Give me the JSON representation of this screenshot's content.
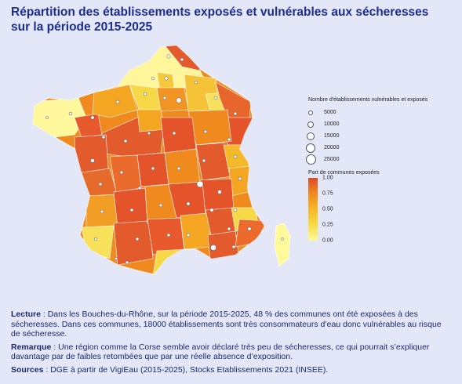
{
  "title": "Répartition des établissements exposés et vulnérables aux sécheresses sur la période 2015-2025",
  "legend": {
    "size_title": "Nombre d'établissements vulnérables et exposés",
    "size_values": [
      "5000",
      "10000",
      "15000",
      "20000",
      "25000"
    ],
    "color_title": "Part de communes exposées",
    "color_ticks": [
      "1.00",
      "0.75",
      "0.50",
      "0.25",
      "0.00"
    ]
  },
  "colors": {
    "background": "#e3e7f7",
    "title": "#1c2d8f",
    "scale_high": "#de4b2a",
    "scale_mid_high": "#f08a1e",
    "scale_mid": "#f6b82b",
    "scale_mid_low": "#f7dc45",
    "scale_low": "#fff99c"
  },
  "notes": {
    "lecture_label": "Lecture",
    "lecture_text": " : Dans les Bouches-du-Rhône, sur la période 2015-2025, 48 % des communes ont été exposées à des sécheresses. Dans ces communes, 18000 établissements sont très consommateurs d’eau donc vulnérables au risque de sécheresse.",
    "remarque_label": "Remarque",
    "remarque_text": " : Une région comme la Corse semble avoir déclaré très peu de sécheresses, ce qui pourrait s’expliquer davantage par de faibles retombées que par une réelle absence d’exposition.",
    "sources_label": "Sources",
    "sources_text": " : DGE à partir de VigiEau (2015-2025), Stocks Etablissements 2021 (INSEE)."
  }
}
